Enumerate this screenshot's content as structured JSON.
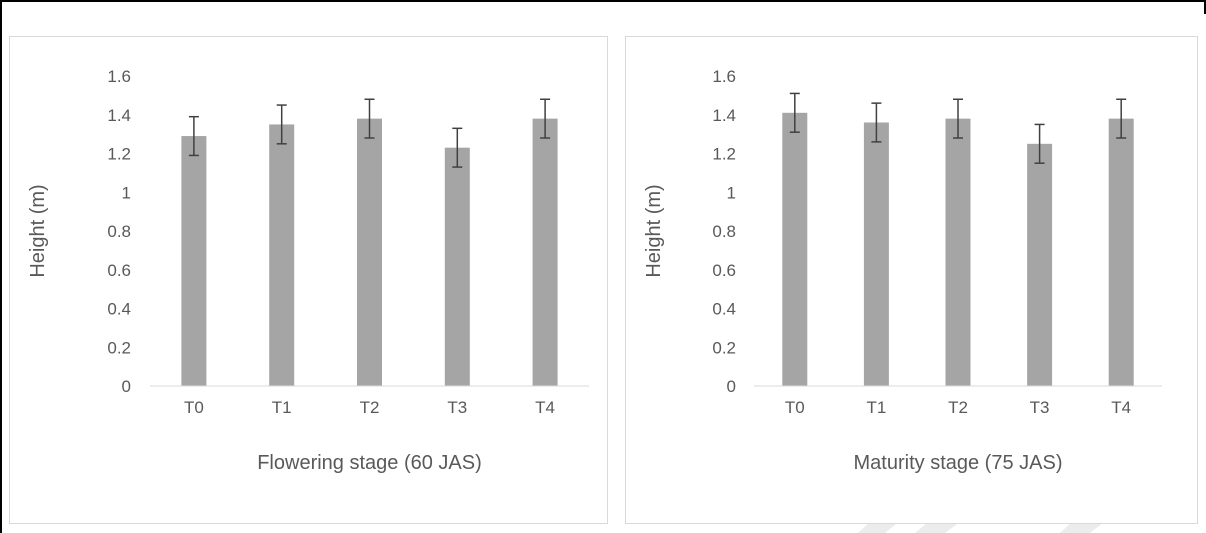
{
  "chart_data": [
    {
      "type": "bar",
      "categories": [
        "T0",
        "T1",
        "T2",
        "T3",
        "T4"
      ],
      "values": [
        1.29,
        1.35,
        1.38,
        1.23,
        1.38
      ],
      "errors": [
        0.1,
        0.1,
        0.1,
        0.1,
        0.1
      ],
      "xlabel": "Flowering stage (60 JAS)",
      "ylabel": "Height (m)",
      "ylim": [
        0,
        1.6
      ],
      "yticks": [
        "0",
        "0.2",
        "0.4",
        "0.6",
        "0.8",
        "1",
        "1.2",
        "1.4",
        "1.6"
      ],
      "bar_color": "#a5a5a5",
      "grid": false
    },
    {
      "type": "bar",
      "categories": [
        "T0",
        "T1",
        "T2",
        "T3",
        "T4"
      ],
      "values": [
        1.41,
        1.36,
        1.38,
        1.25,
        1.38
      ],
      "errors": [
        0.1,
        0.1,
        0.1,
        0.1,
        0.1
      ],
      "xlabel": "Maturity stage (75 JAS)",
      "ylabel": "Height (m)",
      "ylim": [
        0,
        1.6
      ],
      "yticks": [
        "0",
        "0.2",
        "0.4",
        "0.6",
        "0.8",
        "1",
        "1.2",
        "1.4",
        "1.6"
      ],
      "bar_color": "#a5a5a5",
      "grid": false
    }
  ]
}
